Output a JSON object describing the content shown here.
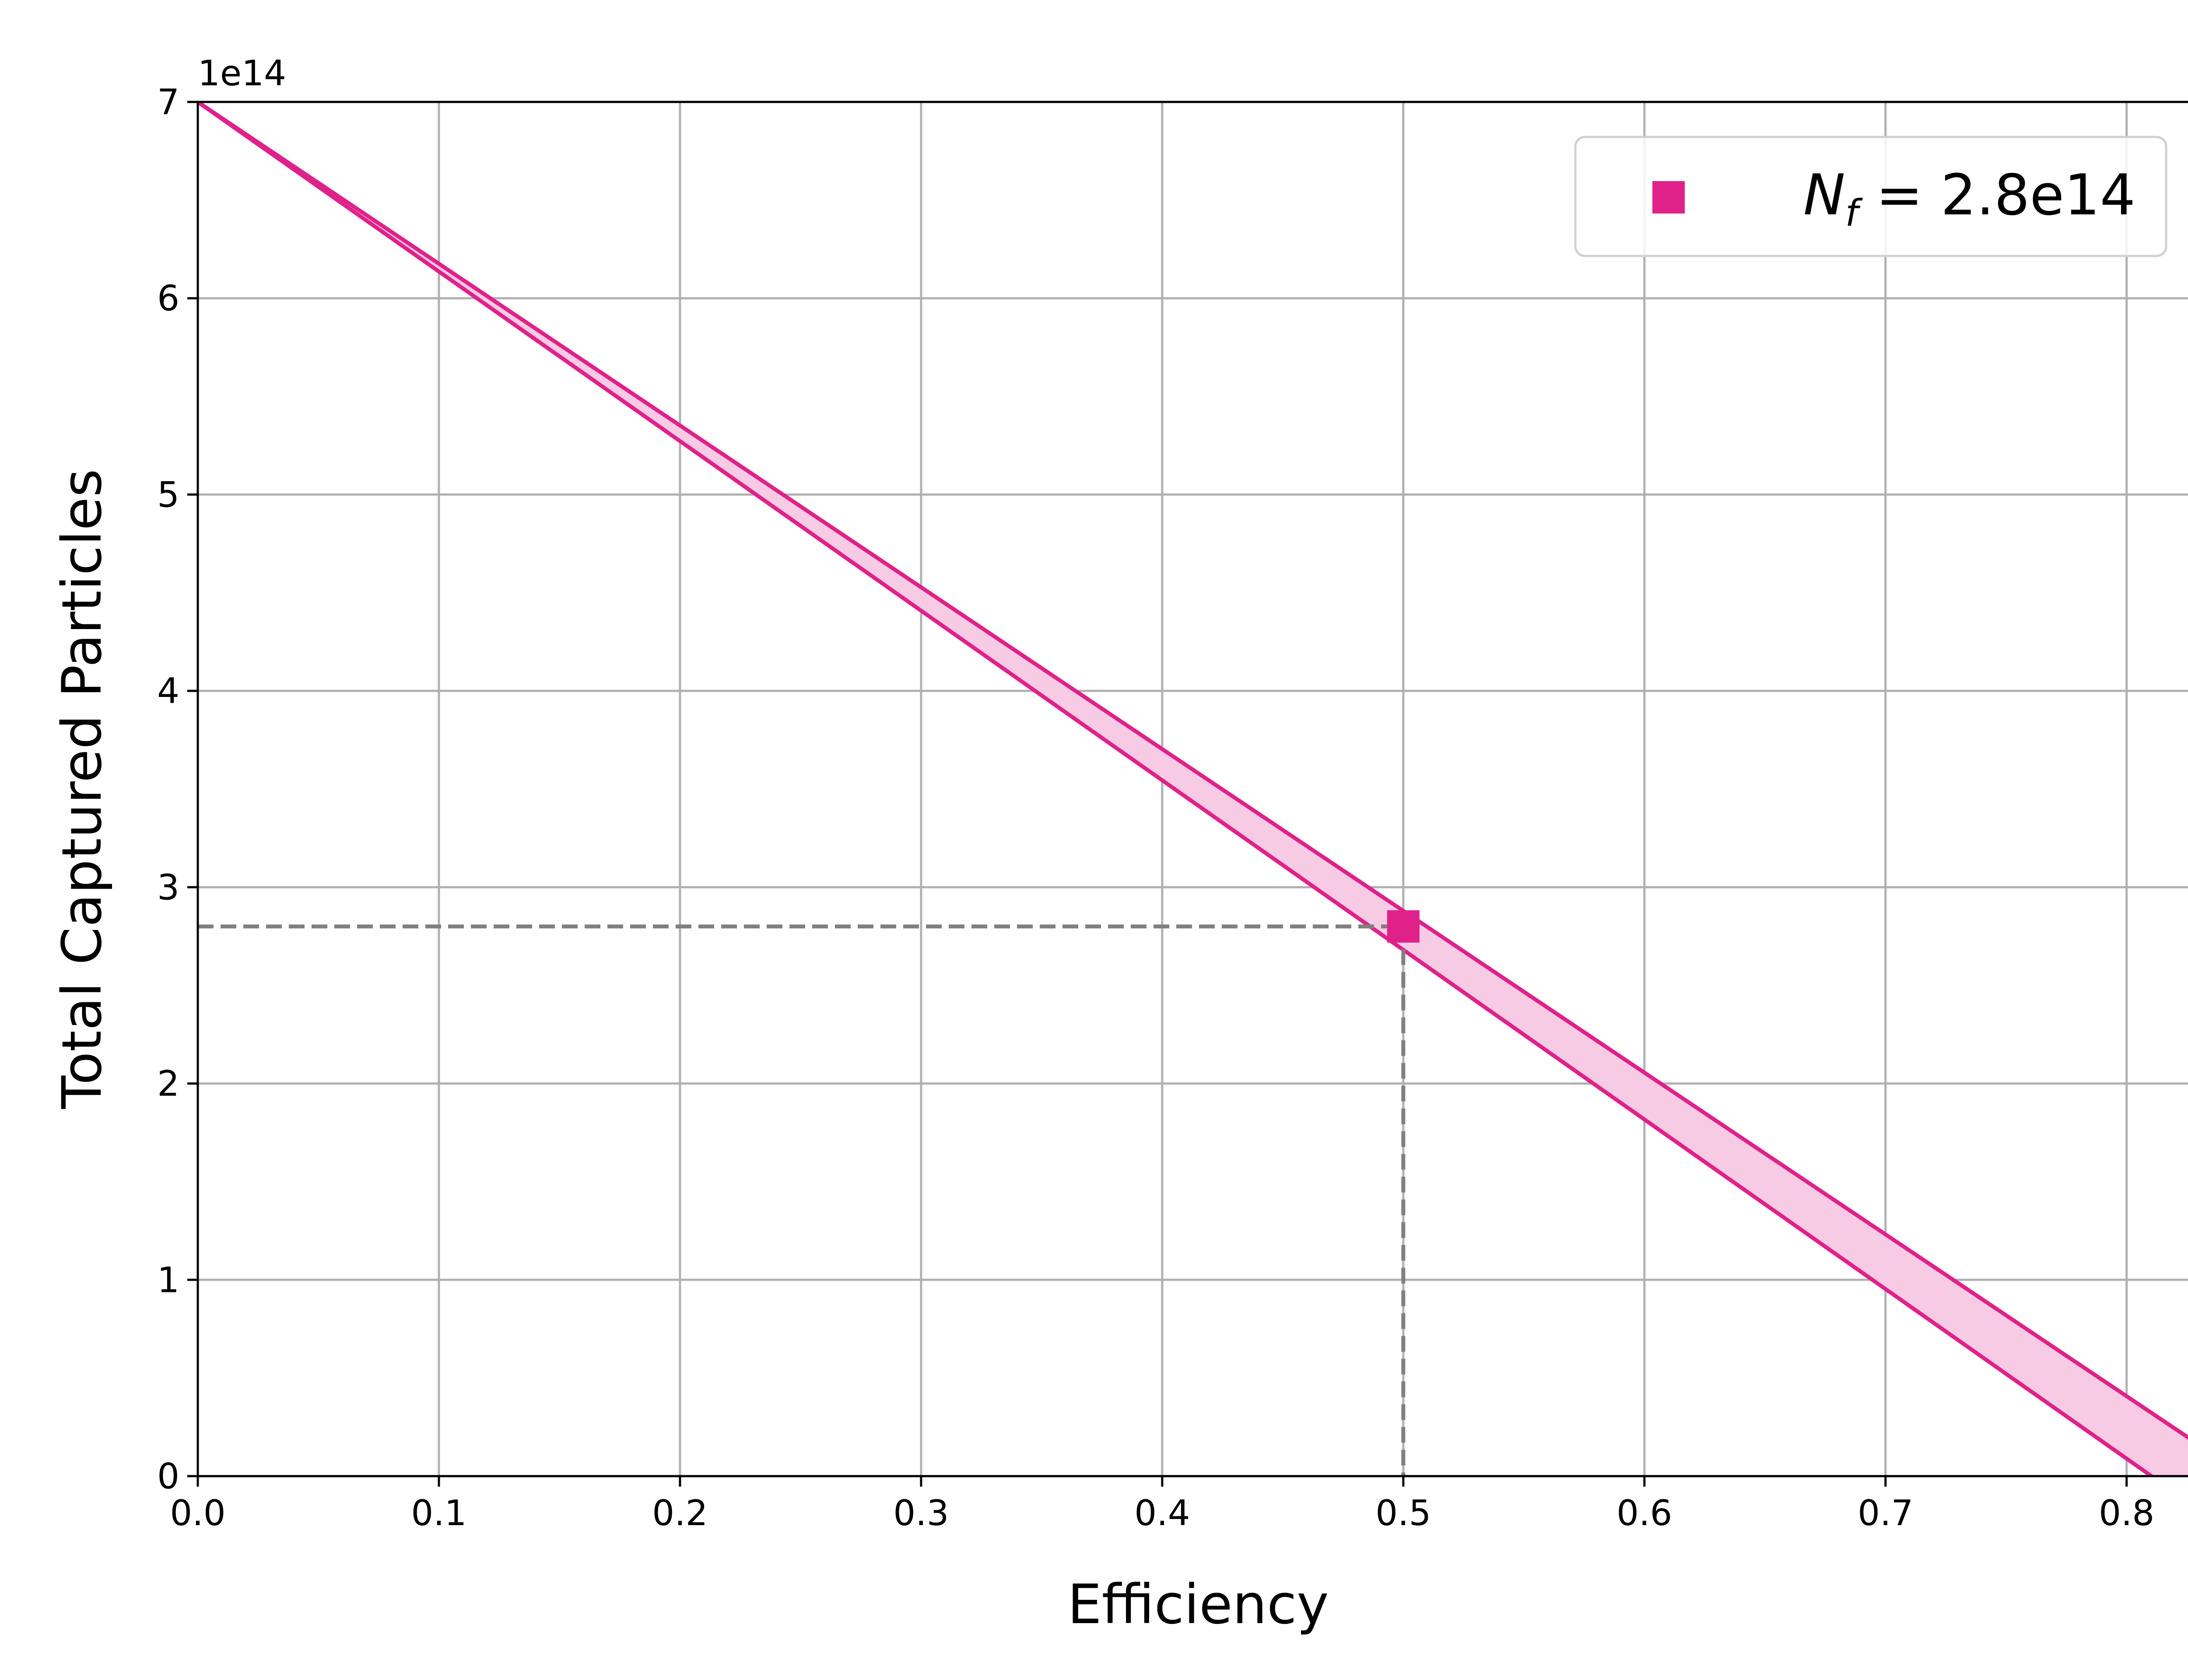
{
  "chart_data": {
    "type": "line",
    "title": "",
    "xlabel": "Efficiency",
    "ylabel": "Total Captured Particles",
    "y_offset_label": "1e14",
    "y_scale_factor": 100000000000000.0,
    "xlim": [
      0.0,
      0.83
    ],
    "ylim": [
      0,
      7
    ],
    "x_ticks": [
      0.0,
      0.1,
      0.2,
      0.3,
      0.4,
      0.5,
      0.6,
      0.7,
      0.8
    ],
    "x_tick_labels": [
      "0.0",
      "0.1",
      "0.2",
      "0.3",
      "0.4",
      "0.5",
      "0.6",
      "0.7",
      "0.8"
    ],
    "y_ticks": [
      0,
      1,
      2,
      3,
      4,
      5,
      6,
      7
    ],
    "y_tick_labels": [
      "0",
      "1",
      "2",
      "3",
      "4",
      "5",
      "6",
      "7"
    ],
    "grid": true,
    "legend_position": "top-right",
    "band": {
      "color": "#e0218a",
      "fill_color": "#f7cbe4",
      "upper": {
        "x": [
          0.0,
          0.83
        ],
        "y": [
          7.0,
          0.16
        ]
      },
      "lower": {
        "x": [
          0.0,
          0.83
        ],
        "y": [
          7.0,
          -0.17
        ]
      }
    },
    "marker": {
      "legend_label_var": "N",
      "legend_label_sub": "f",
      "legend_label_rest": " = 2.8e14",
      "x": 0.5,
      "y": 2.8,
      "color": "#e0218a",
      "shape": "square"
    },
    "guide_lines": {
      "color": "#808080",
      "style": "dashed",
      "x": 0.5,
      "y": 2.8
    }
  }
}
